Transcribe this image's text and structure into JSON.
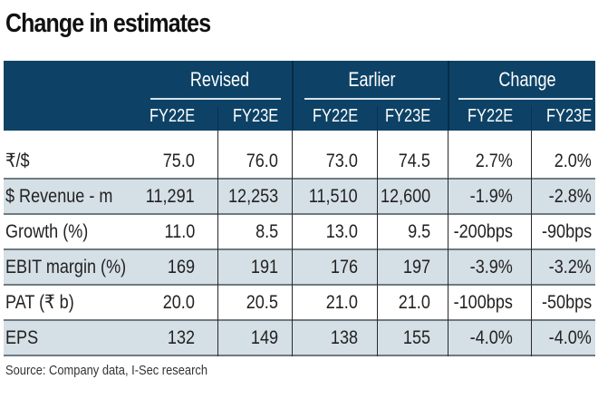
{
  "title": "Change in estimates",
  "groups": [
    "Revised",
    "Earlier",
    "Change"
  ],
  "subheaders": [
    "FY22E",
    "FY23E",
    "FY22E",
    "FY23E",
    "FY22E",
    "FY23E"
  ],
  "rows": [
    {
      "label": "₹/$",
      "values": [
        "75.0",
        "76.0",
        "73.0",
        "74.5",
        "2.7%",
        "2.0%"
      ]
    },
    {
      "label": "$ Revenue - m",
      "values": [
        "11,291",
        "12,253",
        "11,510",
        "12,600",
        "-1.9%",
        "-2.8%"
      ]
    },
    {
      "label": "Growth (%)",
      "values": [
        "11.0",
        "8.5",
        "13.0",
        "9.5",
        "-200bps",
        "-90bps"
      ]
    },
    {
      "label": "EBIT margin (%)",
      "values": [
        "169",
        "191",
        "176",
        "197",
        "-3.9%",
        "-3.2%"
      ]
    },
    {
      "label": "PAT (₹ b)",
      "values": [
        "20.0",
        "20.5",
        "21.0",
        "21.0",
        "-100bps",
        "-50bps"
      ]
    },
    {
      "label": "EPS",
      "values": [
        "132",
        "149",
        "138",
        "155",
        "-4.0%",
        "-4.0%"
      ]
    }
  ],
  "source": "Source: Company data, I-Sec research",
  "colors": {
    "header_bg": "#0d4266",
    "shaded_row": "#d5dfe6"
  }
}
